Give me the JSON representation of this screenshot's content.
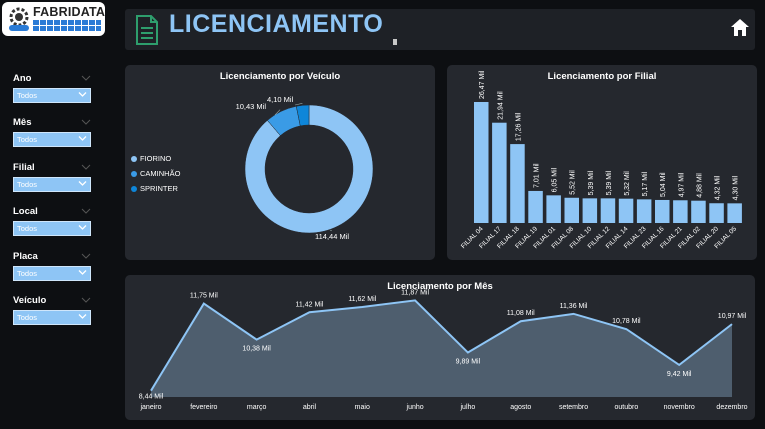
{
  "logo": {
    "text": "FABRIDATA"
  },
  "header": {
    "title": "LICENCIAMENTO"
  },
  "filters": [
    {
      "label": "Ano",
      "value": "Todos"
    },
    {
      "label": "Mês",
      "value": "Todos"
    },
    {
      "label": "Filial",
      "value": "Todos"
    },
    {
      "label": "Local",
      "value": "Todos"
    },
    {
      "label": "Placa",
      "value": "Todos"
    },
    {
      "label": "Veículo",
      "value": "Todos"
    }
  ],
  "colors": {
    "accent": "#8ec5f5",
    "panel": "#25282e",
    "background": "#0d0f12",
    "series2": "#3a9be6",
    "series3": "#0e86d9",
    "area": "#566779"
  },
  "chart_data": [
    {
      "type": "pie",
      "title": "Licenciamento por Veículo",
      "categories": [
        "FIORINO",
        "CAMINHÃO",
        "SPRINTER"
      ],
      "values": [
        114.44,
        10.43,
        4.1
      ],
      "data_labels": [
        "114,44 Mil",
        "10,43 Mil",
        "4,10 Mil"
      ],
      "donut": true,
      "legend": "left"
    },
    {
      "type": "bar",
      "title": "Licenciamento por Filial",
      "categories": [
        "FILIAL 04",
        "FILIAL 17",
        "FILIAL 18",
        "FILIAL 19",
        "FILIAL 01",
        "FILIAL 08",
        "FILIAL 10",
        "FILIAL 12",
        "FILIAL 14",
        "FILIAL 23",
        "FILIAL 16",
        "FILIAL 21",
        "FILIAL 02",
        "FILIAL 20",
        "FILIAL 05"
      ],
      "values": [
        26.47,
        21.94,
        17.26,
        7.01,
        6.05,
        5.52,
        5.39,
        5.39,
        5.32,
        5.17,
        5.04,
        4.97,
        4.88,
        4.32,
        4.3
      ],
      "data_labels": [
        "26,47 Mil",
        "21,94 Mil",
        "17,26 Mil",
        "7,01 Mil",
        "6,05 Mil",
        "5,52 Mil",
        "5,39 Mil",
        "5,39 Mil",
        "5,32 Mil",
        "5,17 Mil",
        "5,04 Mil",
        "4,97 Mil",
        "4,88 Mil",
        "4,32 Mil",
        "4,30 Mil"
      ],
      "ylim": [
        0,
        28
      ]
    },
    {
      "type": "area",
      "title": "Licenciamento por Mês",
      "categories": [
        "janeiro",
        "fevereiro",
        "março",
        "abril",
        "maio",
        "junho",
        "julho",
        "agosto",
        "setembro",
        "outubro",
        "novembro",
        "dezembro"
      ],
      "values": [
        8.44,
        11.75,
        10.38,
        11.42,
        11.62,
        11.87,
        9.89,
        11.08,
        11.36,
        10.78,
        9.42,
        10.97
      ],
      "data_labels": [
        "8,44 Mil",
        "11,75 Mil",
        "10,38 Mil",
        "11,42 Mil",
        "11,62 Mil",
        "11,87 Mil",
        "9,89 Mil",
        "11,08 Mil",
        "11,36 Mil",
        "10,78 Mil",
        "9,42 Mil",
        "10,97 Mil"
      ],
      "ylim": [
        8.2,
        12
      ]
    }
  ]
}
